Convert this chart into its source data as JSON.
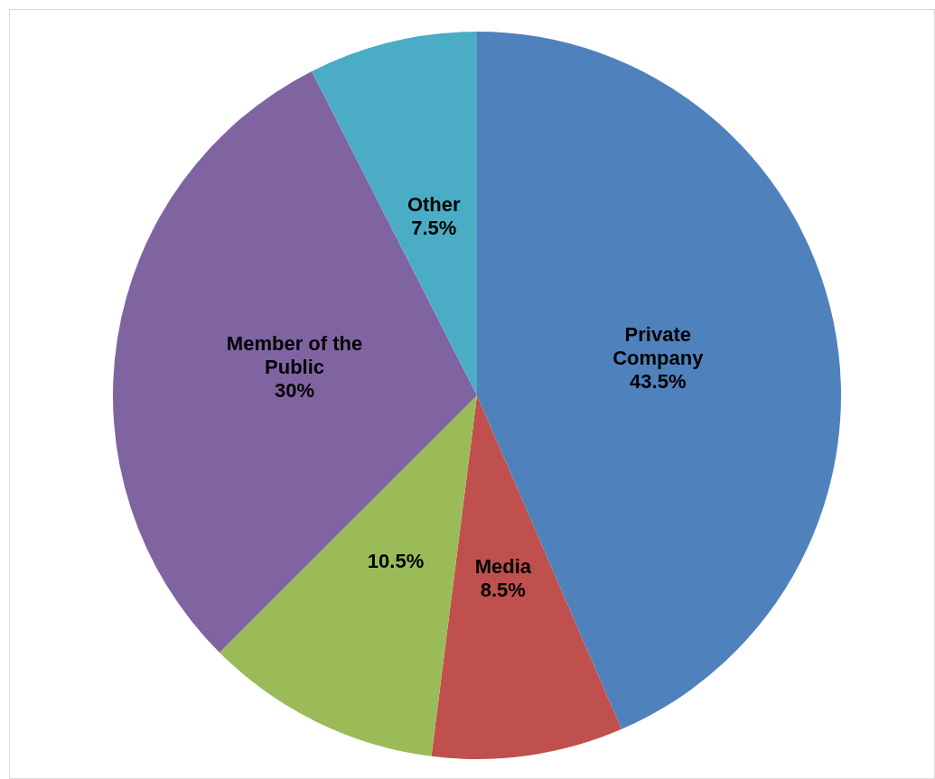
{
  "chart_data": {
    "type": "pie",
    "categories": [
      "Private Company",
      "Media",
      null,
      "Member of the Public",
      "Other"
    ],
    "values": [
      43.5,
      8.5,
      10.5,
      30,
      7.5
    ],
    "value_labels": [
      "43.5%",
      "8.5%",
      "10.5%",
      "30%",
      "7.5%"
    ],
    "colors": [
      "#4f81bd",
      "#c0504d",
      "#9bbb59",
      "#8064a2",
      "#4bacc6"
    ],
    "legend": false
  }
}
